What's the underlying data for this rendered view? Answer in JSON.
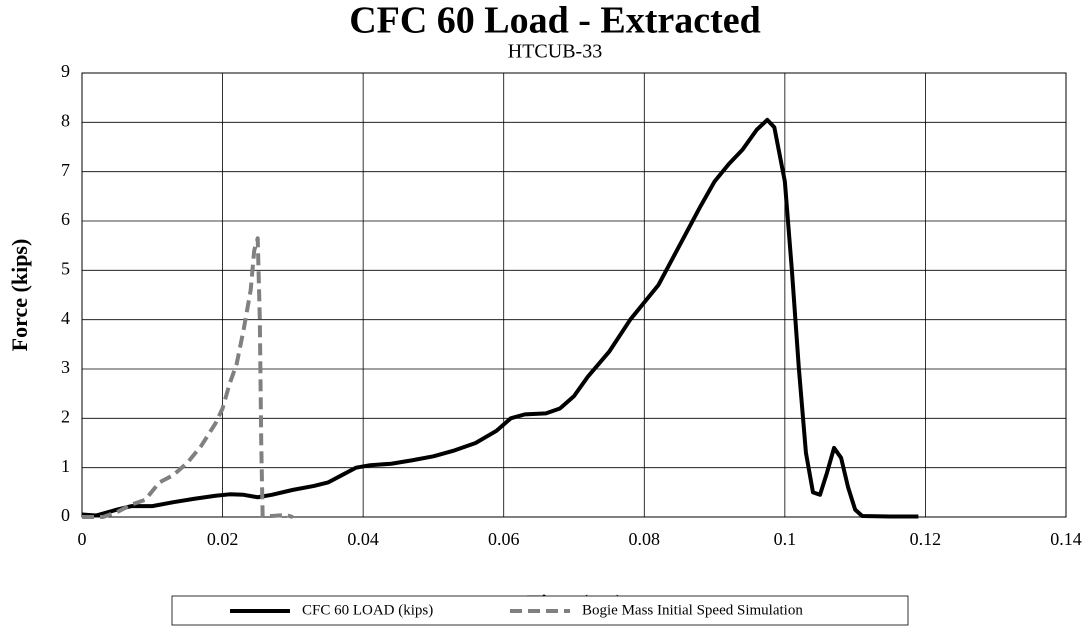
{
  "chart_data": {
    "type": "line",
    "title": "CFC 60 Load - Extracted",
    "subtitle": "HTCUB-33",
    "x_label": "Time (sec)",
    "y_label": "Force (kips)",
    "xlim": [
      0,
      0.14
    ],
    "xticks": [
      0,
      0.02,
      0.04,
      0.06,
      0.08,
      0.1,
      0.12,
      0.14
    ],
    "ylim": [
      0,
      9
    ],
    "yticks": [
      0,
      1,
      2,
      3,
      4,
      5,
      6,
      7,
      8,
      9
    ],
    "grid": true,
    "legend": "bottom",
    "series": [
      {
        "name": "CFC 60 LOAD (kips)",
        "color": "#000000",
        "dash": false,
        "x": [
          0,
          0.002,
          0.005,
          0.007,
          0.01,
          0.013,
          0.016,
          0.019,
          0.021,
          0.023,
          0.025,
          0.027,
          0.03,
          0.033,
          0.035,
          0.037,
          0.039,
          0.041,
          0.044,
          0.047,
          0.05,
          0.053,
          0.056,
          0.059,
          0.061,
          0.063,
          0.066,
          0.068,
          0.07,
          0.072,
          0.075,
          0.078,
          0.08,
          0.082,
          0.085,
          0.088,
          0.09,
          0.092,
          0.094,
          0.096,
          0.0975,
          0.0985,
          0.1,
          0.101,
          0.102,
          0.103,
          0.104,
          0.105,
          0.106,
          0.107,
          0.108,
          0.109,
          0.11,
          0.111,
          0.115,
          0.119
        ],
        "values": [
          0.05,
          0.03,
          0.15,
          0.22,
          0.22,
          0.3,
          0.37,
          0.43,
          0.46,
          0.45,
          0.4,
          0.45,
          0.55,
          0.63,
          0.7,
          0.85,
          1.0,
          1.05,
          1.08,
          1.15,
          1.23,
          1.35,
          1.5,
          1.75,
          2.0,
          2.08,
          2.1,
          2.2,
          2.45,
          2.85,
          3.35,
          4.0,
          4.35,
          4.7,
          5.5,
          6.3,
          6.8,
          7.15,
          7.45,
          7.85,
          8.05,
          7.9,
          6.8,
          5.0,
          3.0,
          1.3,
          0.5,
          0.45,
          0.9,
          1.4,
          1.2,
          0.6,
          0.15,
          0.02,
          0.01,
          0.01
        ]
      },
      {
        "name": "Bogie Mass Initial Speed Simulation",
        "color": "#808080",
        "dash": true,
        "x": [
          0,
          0.003,
          0.005,
          0.007,
          0.009,
          0.011,
          0.013,
          0.015,
          0.017,
          0.019,
          0.02,
          0.021,
          0.022,
          0.023,
          0.024,
          0.0245,
          0.025,
          0.0253,
          0.0255,
          0.0257,
          0.027,
          0.029,
          0.03
        ],
        "values": [
          0,
          0,
          0.1,
          0.25,
          0.35,
          0.7,
          0.85,
          1.1,
          1.45,
          1.9,
          2.2,
          2.7,
          3.1,
          3.8,
          4.6,
          5.4,
          5.65,
          4.0,
          1.5,
          0.02,
          0.02,
          0.04,
          0
        ]
      }
    ]
  }
}
